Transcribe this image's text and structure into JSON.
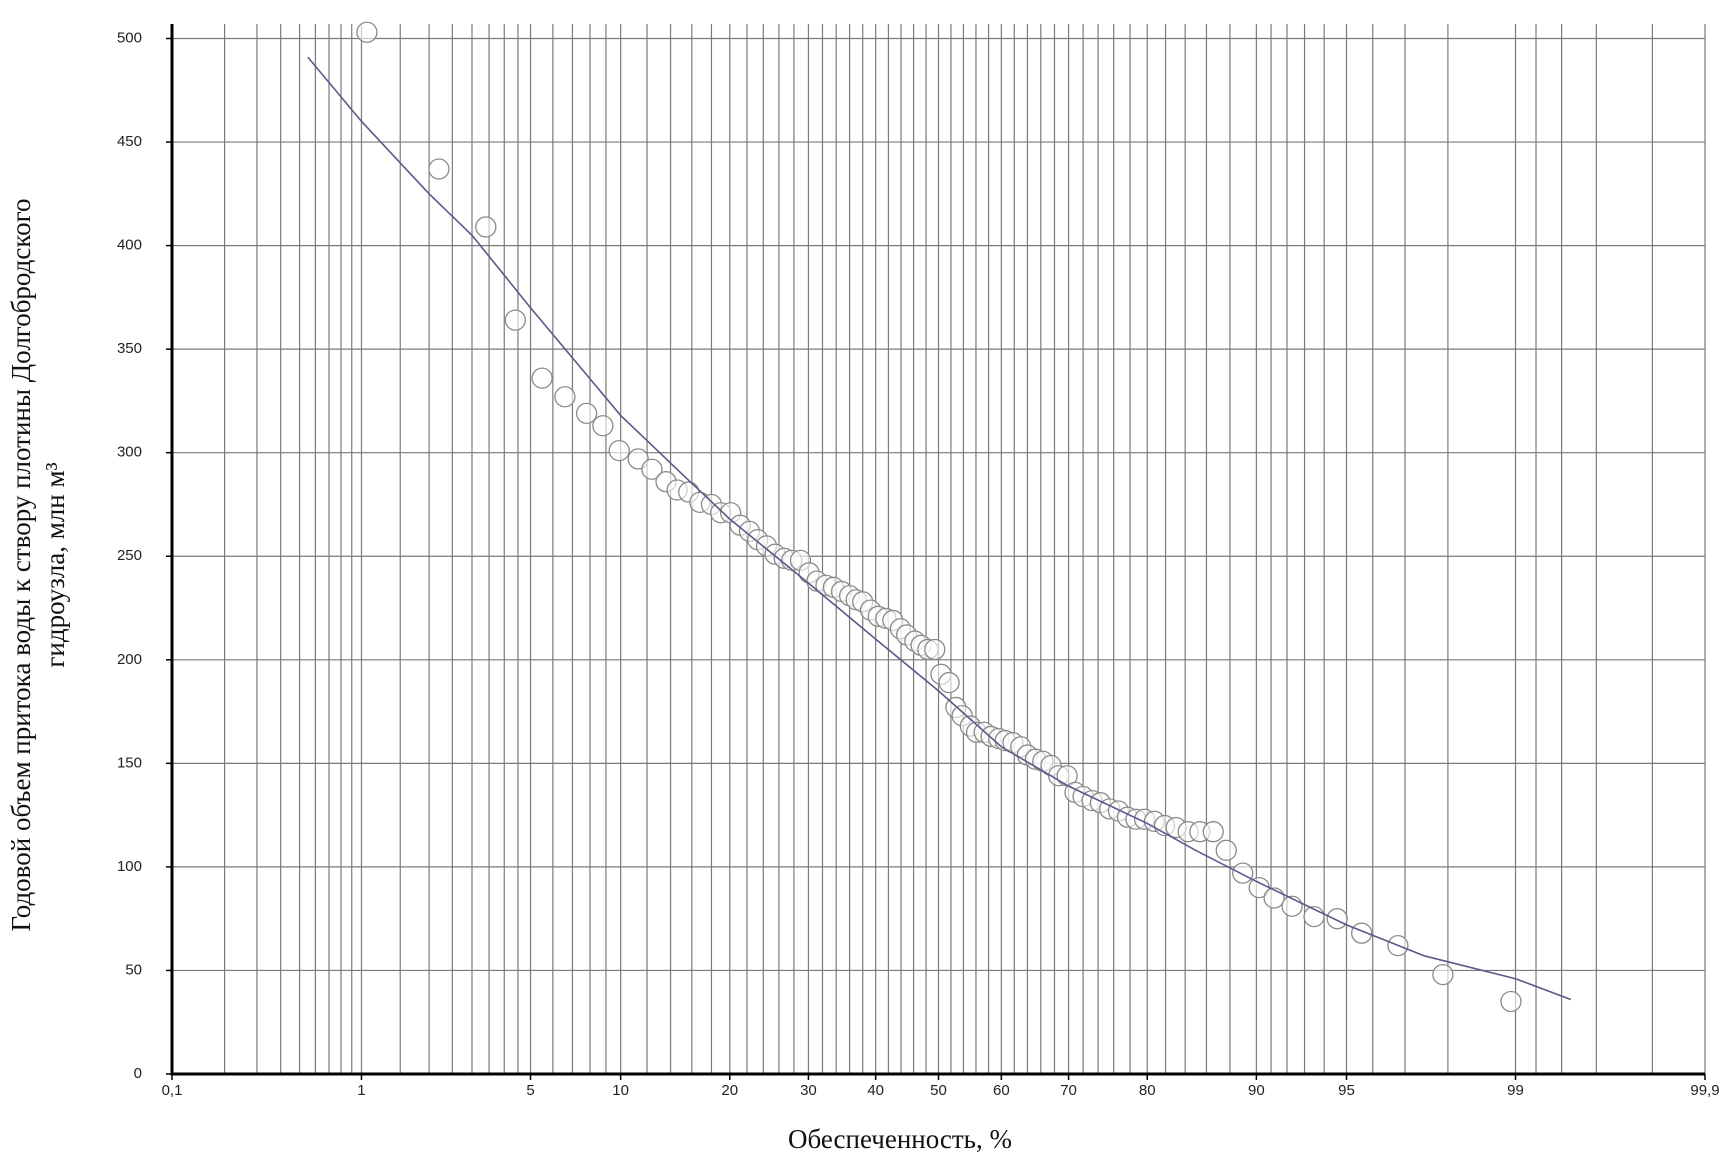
{
  "chart_data": {
    "type": "scatter",
    "xlabel": "Обеспеченность, %",
    "ylabel": [
      "Годовой объем притока воды к створу плотины Долгобродского",
      "гидроузла,  млн м³"
    ],
    "xscale": "probability",
    "grid": true,
    "xlim": [
      0.1,
      99.9
    ],
    "ylim": [
      0,
      507
    ],
    "xticks": [
      {
        "value": 0.1,
        "label": "0,1"
      },
      1,
      5,
      10,
      20,
      30,
      40,
      50,
      60,
      70,
      80,
      90,
      95,
      99,
      {
        "value": 99.9,
        "label": "99,9"
      }
    ],
    "xgrid": [
      0.2,
      0.3,
      0.4,
      0.5,
      0.6,
      0.7,
      0.8,
      0.9,
      1.5,
      2,
      2.5,
      3,
      3.5,
      4,
      4.5,
      6,
      7,
      8,
      9,
      12,
      14,
      16,
      18,
      22,
      24,
      26,
      28,
      32,
      34,
      36,
      38,
      42,
      44,
      46,
      48,
      52,
      54,
      56,
      58,
      62,
      64,
      66,
      68,
      72,
      74,
      76,
      78,
      82,
      84,
      86,
      88,
      91,
      92,
      93,
      94,
      96,
      97,
      98,
      99.2,
      99.4,
      99.6,
      99.8
    ],
    "yticks": [
      0,
      50,
      100,
      150,
      200,
      250,
      300,
      350,
      400,
      450,
      500
    ],
    "series": [
      {
        "type": "scatter",
        "color": "#8a8a8a",
        "x": [
          1.06,
          2.2,
          3.4,
          4.4,
          5.5,
          6.6,
          7.8,
          8.8,
          9.9,
          11.3,
          12.4,
          13.6,
          14.6,
          15.7,
          16.8,
          18.0,
          19.0,
          20.1,
          21.2,
          22.3,
          23.3,
          24.4,
          25.5,
          26.7,
          27.7,
          28.9,
          30.1,
          31.2,
          32.5,
          33.6,
          34.8,
          36.0,
          37.0,
          38.0,
          39.2,
          40.4,
          41.6,
          42.7,
          43.9,
          44.9,
          46.2,
          47.2,
          48.3,
          49.4,
          50.4,
          51.7,
          52.8,
          53.8,
          55.1,
          56.1,
          57.3,
          58.4,
          59.6,
          60.6,
          61.8,
          63.0,
          64.0,
          65.2,
          66.3,
          67.5,
          68.6,
          69.8,
          70.9,
          72.0,
          73.2,
          74.3,
          75.5,
          76.6,
          77.7,
          78.7,
          79.7,
          80.8,
          81.9,
          83.1,
          84.3,
          85.4,
          86.6,
          87.7,
          89.0,
          90.2,
          91.2,
          92.3,
          93.5,
          94.6,
          95.6,
          96.8,
          97.9,
          98.95
        ],
        "values": [
          503,
          437,
          409,
          364,
          336,
          327,
          319,
          313,
          301,
          297,
          292,
          286,
          282,
          281,
          276,
          275,
          271,
          271,
          265,
          262,
          258,
          255,
          251,
          249,
          248,
          248,
          242,
          238,
          236,
          235,
          233,
          231,
          229,
          228,
          224,
          221,
          220,
          219,
          215,
          212,
          209,
          207,
          205,
          205,
          193,
          189,
          177,
          173,
          168,
          165,
          165,
          163,
          162,
          161,
          160,
          158,
          154,
          152,
          151,
          149,
          144,
          144,
          136,
          134,
          132,
          131,
          128,
          127,
          124,
          123,
          123,
          122,
          120,
          119,
          117,
          117,
          117,
          108,
          97,
          90,
          85,
          81,
          76,
          75,
          68,
          62,
          48,
          35
        ]
      },
      {
        "type": "line",
        "color": "#5a5a8a",
        "x": [
          0.55,
          1,
          2,
          3,
          5,
          10,
          15,
          20,
          30,
          40,
          50,
          60,
          70,
          80,
          85,
          90,
          95,
          97.5,
          99,
          99.46
        ],
        "values": [
          491,
          460,
          425,
          405,
          370,
          318,
          290,
          268,
          237,
          210,
          185,
          158,
          139,
          121,
          108,
          93,
          72,
          57,
          46,
          36
        ]
      }
    ]
  }
}
